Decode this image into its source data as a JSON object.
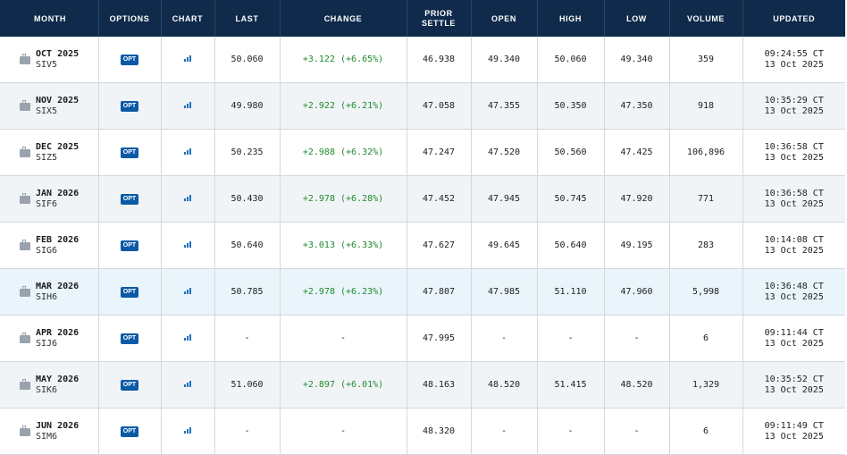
{
  "headers": {
    "month": "MONTH",
    "options": "OPTIONS",
    "chart": "CHART",
    "last": "LAST",
    "change": "CHANGE",
    "prior_line1": "PRIOR",
    "prior_line2": "SETTLE",
    "open": "OPEN",
    "high": "HIGH",
    "low": "LOW",
    "volume": "VOLUME",
    "updated": "UPDATED"
  },
  "opt_label": "OPT",
  "icons": {
    "month": "calendar-icon",
    "chart": "bar-chart-icon"
  },
  "colors": {
    "header_bg": "#0f2a4a",
    "positive": "#1e8a2e",
    "opt_badge": "#0b5aa6"
  },
  "rows": [
    {
      "month": "OCT 2025",
      "code": "SIV5",
      "last": "50.060",
      "change": "+3.122 (+6.65%)",
      "prior": "46.938",
      "open": "49.340",
      "high": "50.060",
      "low": "49.340",
      "volume": "359",
      "time": "09:24:55 CT",
      "date": "13 Oct 2025"
    },
    {
      "month": "NOV 2025",
      "code": "SIX5",
      "last": "49.980",
      "change": "+2.922 (+6.21%)",
      "prior": "47.058",
      "open": "47.355",
      "high": "50.350",
      "low": "47.350",
      "volume": "918",
      "time": "10:35:29 CT",
      "date": "13 Oct 2025"
    },
    {
      "month": "DEC 2025",
      "code": "SIZ5",
      "last": "50.235",
      "change": "+2.988 (+6.32%)",
      "prior": "47.247",
      "open": "47.520",
      "high": "50.560",
      "low": "47.425",
      "volume": "106,896",
      "time": "10:36:58 CT",
      "date": "13 Oct 2025"
    },
    {
      "month": "JAN 2026",
      "code": "SIF6",
      "last": "50.430",
      "change": "+2.978 (+6.28%)",
      "prior": "47.452",
      "open": "47.945",
      "high": "50.745",
      "low": "47.920",
      "volume": "771",
      "time": "10:36:58 CT",
      "date": "13 Oct 2025"
    },
    {
      "month": "FEB 2026",
      "code": "SIG6",
      "last": "50.640",
      "change": "+3.013 (+6.33%)",
      "prior": "47.627",
      "open": "49.645",
      "high": "50.640",
      "low": "49.195",
      "volume": "283",
      "time": "10:14:08 CT",
      "date": "13 Oct 2025"
    },
    {
      "month": "MAR 2026",
      "code": "SIH6",
      "last": "50.785",
      "change": "+2.978 (+6.23%)",
      "prior": "47.807",
      "open": "47.985",
      "high": "51.110",
      "low": "47.960",
      "volume": "5,998",
      "time": "10:36:48 CT",
      "date": "13 Oct 2025"
    },
    {
      "month": "APR 2026",
      "code": "SIJ6",
      "last": "-",
      "change": "-",
      "prior": "47.995",
      "open": "-",
      "high": "-",
      "low": "-",
      "volume": "6",
      "time": "09:11:44 CT",
      "date": "13 Oct 2025"
    },
    {
      "month": "MAY 2026",
      "code": "SIK6",
      "last": "51.060",
      "change": "+2.897 (+6.01%)",
      "prior": "48.163",
      "open": "48.520",
      "high": "51.415",
      "low": "48.520",
      "volume": "1,329",
      "time": "10:35:52 CT",
      "date": "13 Oct 2025"
    },
    {
      "month": "JUN 2026",
      "code": "SIM6",
      "last": "-",
      "change": "-",
      "prior": "48.320",
      "open": "-",
      "high": "-",
      "low": "-",
      "volume": "6",
      "time": "09:11:49 CT",
      "date": "13 Oct 2025"
    }
  ]
}
